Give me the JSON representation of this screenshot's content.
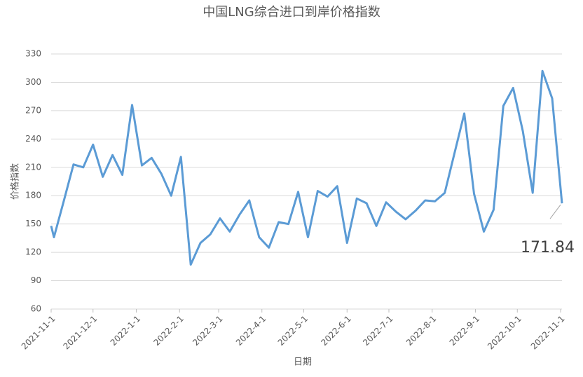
{
  "chart_data": {
    "type": "line",
    "title": "中国LNG综合进口到岸价格指数",
    "x_label": "日期",
    "y_label": "价格指数",
    "x": [
      "2021-11-1",
      "2021-11-3",
      "2021-11-10",
      "2021-11-17",
      "2021-11-24",
      "2021-12-1",
      "2021-12-8",
      "2021-12-15",
      "2021-12-22",
      "2021-12-29",
      "2022-1-5",
      "2022-1-12",
      "2022-1-19",
      "2022-1-26",
      "2022-2-2",
      "2022-2-9",
      "2022-2-16",
      "2022-2-23",
      "2022-3-2",
      "2022-3-9",
      "2022-3-16",
      "2022-3-23",
      "2022-3-30",
      "2022-4-6",
      "2022-4-13",
      "2022-4-20",
      "2022-4-27",
      "2022-5-4",
      "2022-5-11",
      "2022-5-18",
      "2022-5-25",
      "2022-6-1",
      "2022-6-8",
      "2022-6-15",
      "2022-6-22",
      "2022-6-29",
      "2022-7-6",
      "2022-7-13",
      "2022-7-20",
      "2022-7-27",
      "2022-8-3",
      "2022-8-10",
      "2022-8-17",
      "2022-8-24",
      "2022-8-31",
      "2022-9-7",
      "2022-9-14",
      "2022-9-21",
      "2022-9-28",
      "2022-10-5",
      "2022-10-12",
      "2022-10-19",
      "2022-10-26",
      "2022-11-2"
    ],
    "series": [
      {
        "color": "#5b9bd5",
        "values": [
          148,
          136,
          174,
          213,
          210,
          234,
          200,
          223,
          202,
          276,
          212,
          220,
          203,
          180,
          221,
          107,
          130,
          139,
          156,
          142,
          160,
          175,
          136,
          125,
          152,
          150,
          184,
          136,
          185,
          179,
          190,
          130,
          177,
          172,
          148,
          173,
          163,
          155,
          164,
          175,
          174,
          183,
          225,
          267,
          182,
          142,
          165,
          275,
          294,
          248,
          183,
          312,
          283,
          171.84
        ]
      }
    ],
    "last_value_label": true,
    "xlim": [
      "2021-11-1",
      "2022-11-2"
    ],
    "xticks": [
      "2021-11-1",
      "2021-12-1",
      "2022-1-1",
      "2022-2-1",
      "2022-3-1",
      "2022-4-1",
      "2022-5-1",
      "2022-6-1",
      "2022-7-1",
      "2022-8-1",
      "2022-9-1",
      "2022-10-1",
      "2022-11-1"
    ],
    "ylim": [
      60,
      330
    ],
    "yticks": [
      60,
      90,
      120,
      150,
      180,
      210,
      240,
      270,
      300,
      330
    ],
    "grid": true
  }
}
